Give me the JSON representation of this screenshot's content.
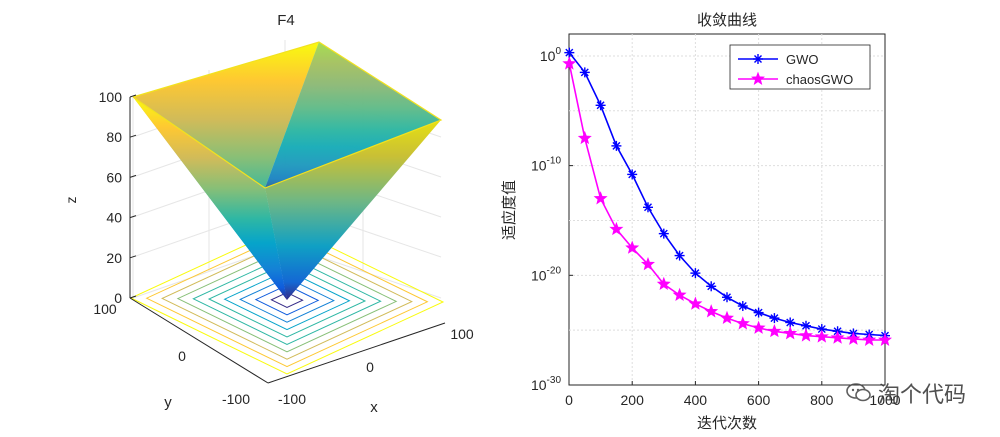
{
  "chart_data": [
    {
      "type": "surface3d",
      "title": "F4",
      "xlabel": "x",
      "ylabel": "y",
      "zlabel": "z",
      "x_ticks": [
        "-100",
        "0",
        "100"
      ],
      "y_ticks": [
        "-100",
        "0",
        "100"
      ],
      "z_ticks": [
        "0",
        "20",
        "40",
        "60",
        "80",
        "100"
      ],
      "xlim": [
        -100,
        100
      ],
      "ylim": [
        -100,
        100
      ],
      "zlim": [
        0,
        100
      ],
      "function": "z = max(|x|, |y|)",
      "contour_levels": [
        10,
        20,
        30,
        40,
        50,
        60,
        70,
        80,
        90,
        100
      ],
      "colormap": [
        "#352a87",
        "#0f5cdd",
        "#1481d6",
        "#06a4ca",
        "#2eb7a4",
        "#87bf77",
        "#d1bb59",
        "#fec832",
        "#f9fb0e"
      ]
    },
    {
      "type": "line",
      "title": "收敛曲线",
      "xlabel": "迭代次数",
      "ylabel": "适应度值",
      "xlim": [
        0,
        1000
      ],
      "ylim_log10": [
        -30,
        2
      ],
      "yscale": "log",
      "x_ticks": [
        "0",
        "200",
        "400",
        "600",
        "800",
        "1000"
      ],
      "y_ticks": [
        {
          "base": "10",
          "exp": "0",
          "value": 0
        },
        {
          "base": "10",
          "exp": "-10",
          "value": -10
        },
        {
          "base": "10",
          "exp": "-20",
          "value": -20
        },
        {
          "base": "10",
          "exp": "-30",
          "value": -30
        }
      ],
      "grid": true,
      "legend": "top-right",
      "x": [
        1,
        50,
        100,
        150,
        200,
        250,
        300,
        350,
        400,
        450,
        500,
        550,
        600,
        650,
        700,
        750,
        800,
        850,
        900,
        950,
        1000
      ],
      "series": [
        {
          "name": "GWO",
          "color": "#0000ff",
          "marker": "asterisk",
          "log10_values": [
            0.3,
            -1.5,
            -4.5,
            -8.2,
            -10.8,
            -13.8,
            -16.2,
            -18.2,
            -19.8,
            -21.0,
            -22.0,
            -22.8,
            -23.4,
            -23.9,
            -24.3,
            -24.6,
            -24.9,
            -25.1,
            -25.3,
            -25.4,
            -25.5
          ]
        },
        {
          "name": "chaosGWO",
          "color": "#ff00ff",
          "marker": "pentagram",
          "log10_values": [
            -0.7,
            -7.5,
            -13.0,
            -15.8,
            -17.5,
            -19.0,
            -20.8,
            -21.8,
            -22.6,
            -23.3,
            -23.9,
            -24.4,
            -24.8,
            -25.1,
            -25.3,
            -25.5,
            -25.6,
            -25.7,
            -25.8,
            -25.9,
            -25.9
          ]
        }
      ]
    }
  ],
  "watermark": {
    "text": "淘个代码"
  }
}
